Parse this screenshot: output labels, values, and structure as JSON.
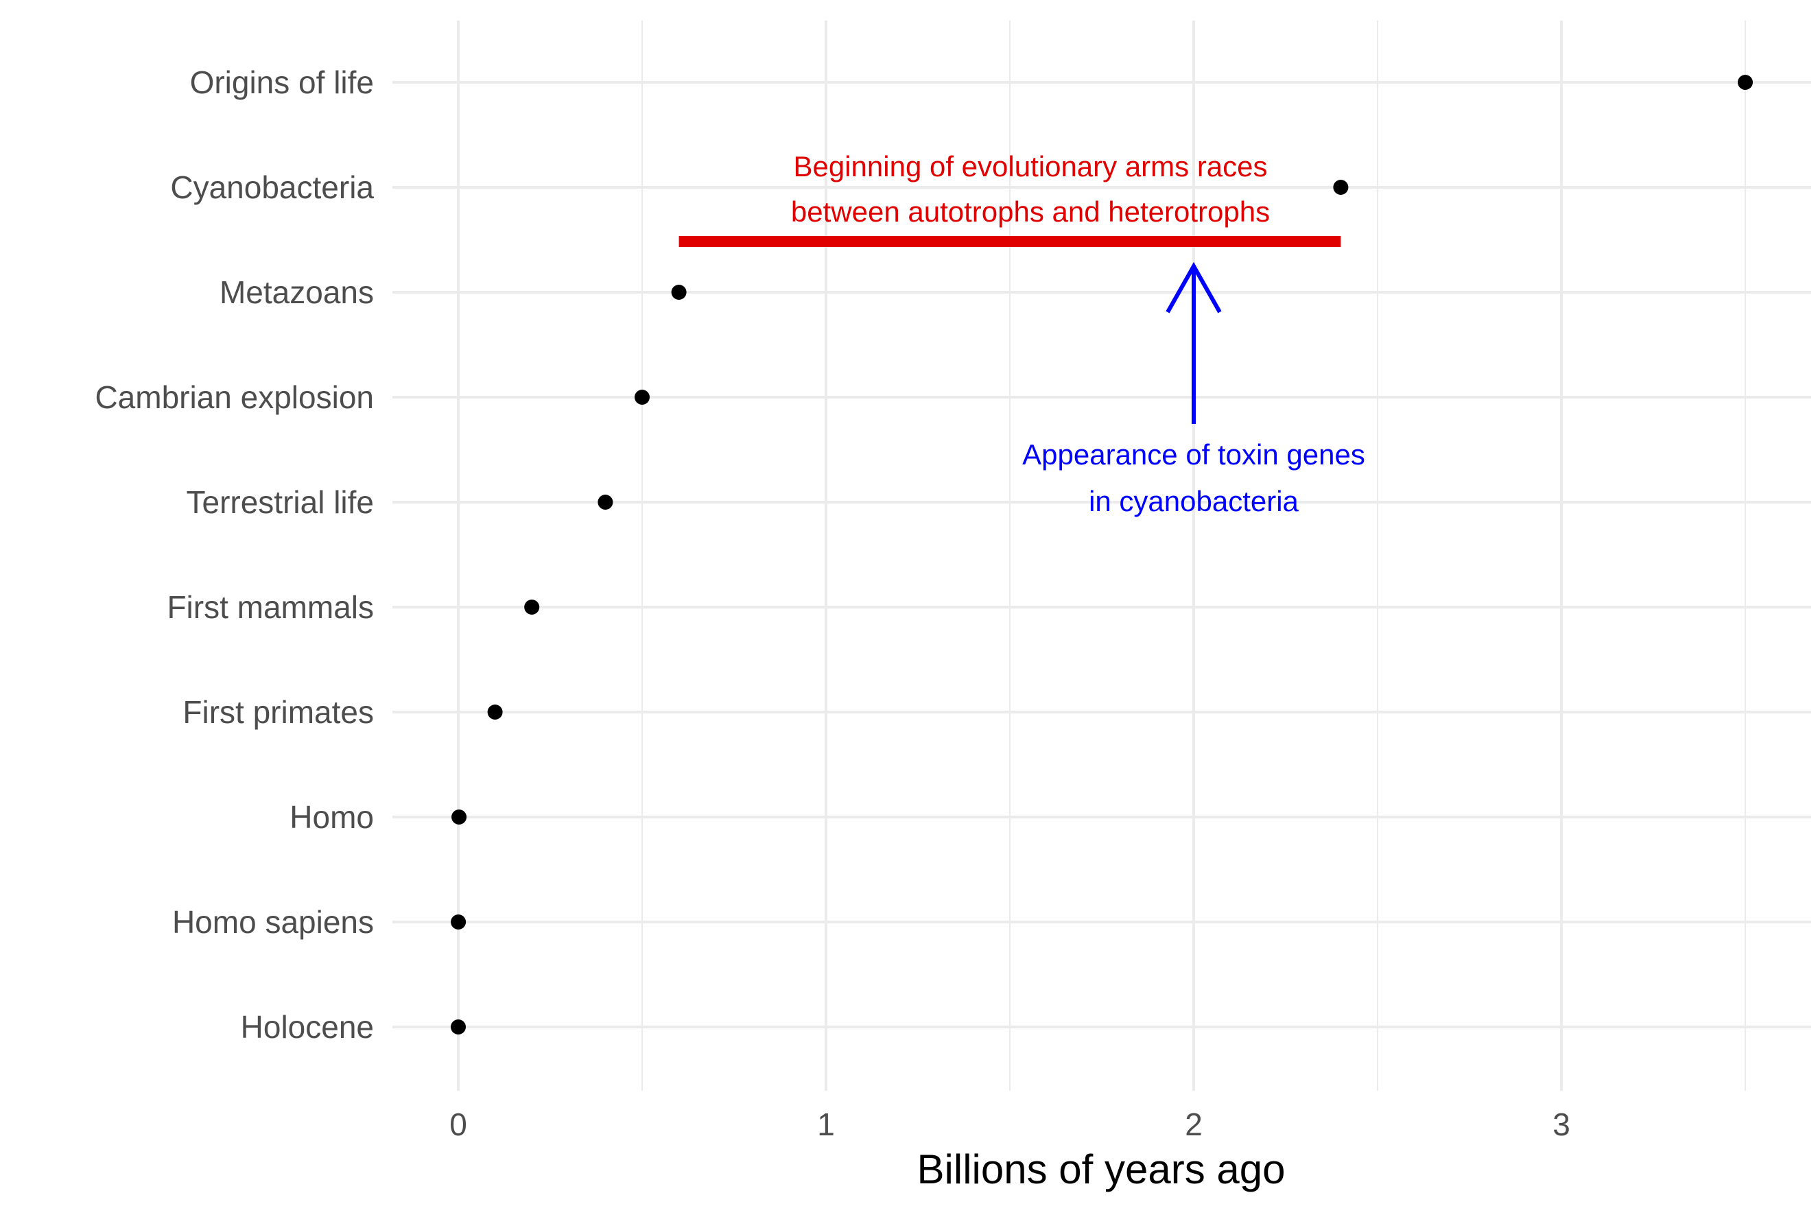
{
  "chart_data": {
    "type": "scatter",
    "title": "",
    "xlabel": "Billions of years ago",
    "ylabel": "",
    "xlim": [
      -0.175,
      3.675
    ],
    "xticks": [
      "0",
      "1",
      "2",
      "3"
    ],
    "xtick_values": [
      0,
      1,
      2,
      3
    ],
    "grid": true,
    "legend": "none",
    "categories": [
      "Origins of life",
      "Cyanobacteria",
      "Metazoans",
      "Cambrian explosion",
      "Terrestrial life",
      "First mammals",
      "First primates",
      "Homo",
      "Homo sapiens",
      "Holocene"
    ],
    "values": [
      3.5,
      2.4,
      0.6,
      0.5,
      0.4,
      0.2,
      0.1,
      0.002,
      0.0002,
      1e-05
    ],
    "point_color": "#000000",
    "annotations": {
      "arms_race": {
        "lines": [
          "Beginning of evolutionary arms races",
          "between autotrophs and heterotrophs"
        ],
        "x_start": 0.6,
        "x_end": 2.4,
        "color": "#e00000"
      },
      "toxin": {
        "lines": [
          "Appearance of toxin genes",
          "in cyanobacteria"
        ],
        "x": 2.0,
        "color": "#0000ff"
      }
    }
  }
}
